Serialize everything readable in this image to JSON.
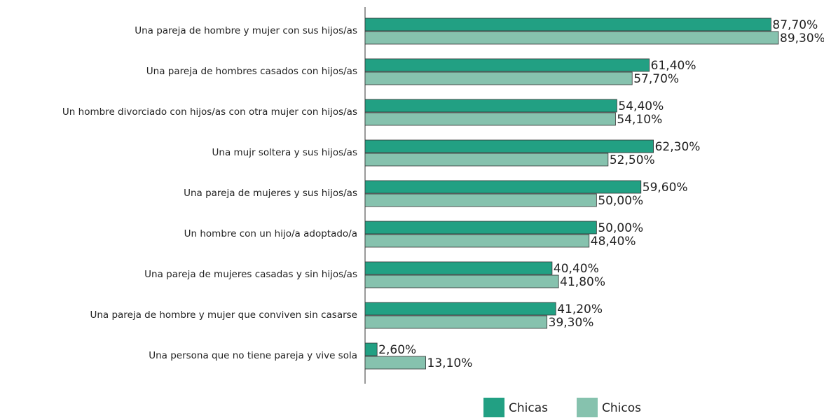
{
  "chart_data": {
    "type": "hbar",
    "categories": [
      "Una pareja de hombre y mujer con sus hijos/as",
      "Una pareja de hombres casados con hijos/as",
      "Un hombre divorciado con hijos/as con otra mujer con hijos/as",
      "Una mujr soltera y sus hijos/as",
      "Una pareja de mujeres y sus hijos/as",
      "Un hombre con un hijo/a adoptado/a",
      "Una pareja de mujeres casadas y sin hijos/as",
      "Una pareja de hombre y mujer que conviven sin casarse",
      "Una persona que no tiene pareja y vive sola"
    ],
    "series": [
      {
        "name": "Chicas",
        "color": "#22a083",
        "values": [
          87.7,
          61.4,
          54.4,
          62.3,
          59.6,
          50.0,
          40.4,
          41.2,
          2.6
        ],
        "value_labels": [
          "87,70%",
          "61,40%",
          "54,40%",
          "62,30%",
          "59,60%",
          "50,00%",
          "40,40%",
          "41,20%",
          "2,60%"
        ]
      },
      {
        "name": "Chicos",
        "color": "#86c2ae",
        "values": [
          89.3,
          57.7,
          54.1,
          52.5,
          50.0,
          48.4,
          41.8,
          39.3,
          13.1
        ],
        "value_labels": [
          "89,30%",
          "57,70%",
          "54,10%",
          "52,50%",
          "50,00%",
          "48,40%",
          "41,80%",
          "39,30%",
          "13,10%"
        ]
      }
    ],
    "legend": "bottom"
  }
}
